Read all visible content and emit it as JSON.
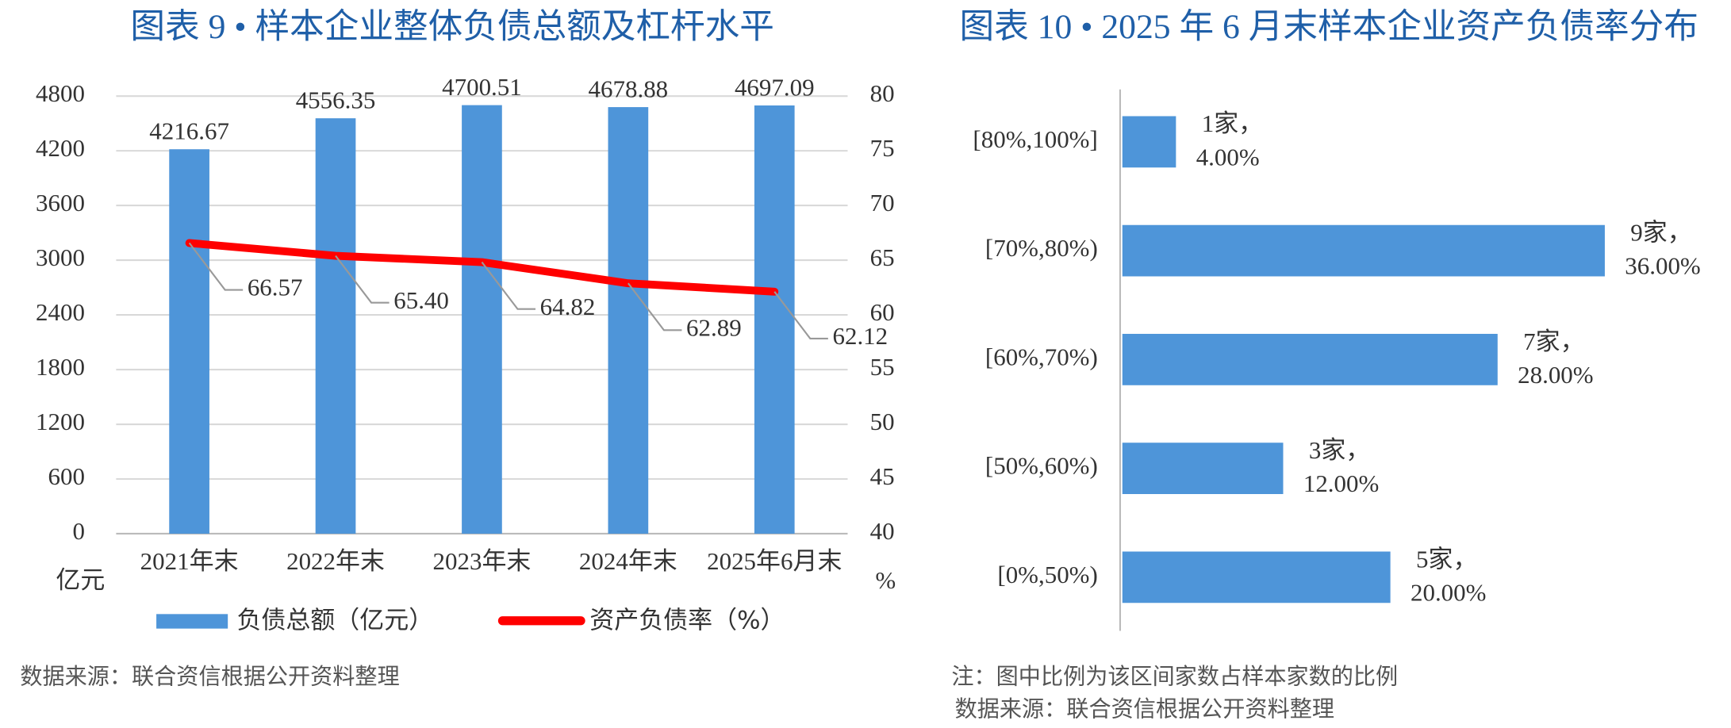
{
  "chart_data": [
    {
      "type": "combo",
      "title": "图表 9 • 样本企业整体负债总额及杠杆水平",
      "categories": [
        "2021年末",
        "2022年末",
        "2023年末",
        "2024年末",
        "2025年6月末"
      ],
      "series": [
        {
          "name": "负债总额（亿元）",
          "type": "bar",
          "color": "#4e95d9",
          "values": [
            4216.67,
            4556.35,
            4700.51,
            4678.88,
            4697.09
          ]
        },
        {
          "name": "资产负债率（%）",
          "type": "line",
          "axis": "y2",
          "color": "#ff0000",
          "values": [
            66.57,
            65.4,
            64.82,
            62.89,
            62.12
          ],
          "value_labels": [
            "66.57",
            "65.40",
            "64.82",
            "62.89",
            "62.12"
          ]
        }
      ],
      "ylim": [
        0,
        4800
      ],
      "yticks": [
        0,
        600,
        1200,
        1800,
        2400,
        3000,
        3600,
        4200,
        4800
      ],
      "y2lim": [
        40,
        80
      ],
      "y2ticks": [
        40,
        45,
        50,
        55,
        60,
        65,
        70,
        75,
        80
      ],
      "y_label": "亿元",
      "y2_label": "%",
      "grid": true,
      "source": "数据来源：联合资信根据公开资料整理"
    },
    {
      "type": "barh",
      "title": "图表 10 • 2025 年 6 月末样本企业资产负债率分布",
      "categories": [
        "[80%,100%]",
        "[70%,80%)",
        "[60%,70%)",
        "[50%,60%)",
        "[0%,50%)"
      ],
      "values": [
        4,
        36,
        28,
        12,
        20
      ],
      "value_labels": [
        "4.00%",
        "36.00%",
        "28.00%",
        "12.00%",
        "20.00%"
      ],
      "counts": [
        1,
        9,
        7,
        3,
        5
      ],
      "count_labels": [
        "1家，",
        "9家，",
        "7家，",
        "3家，",
        "5家，"
      ],
      "color": "#4e95d9",
      "note": "注：图中比例为该区间家数占样本家数的比例",
      "source": "数据来源：联合资信根据公开资料整理"
    }
  ]
}
